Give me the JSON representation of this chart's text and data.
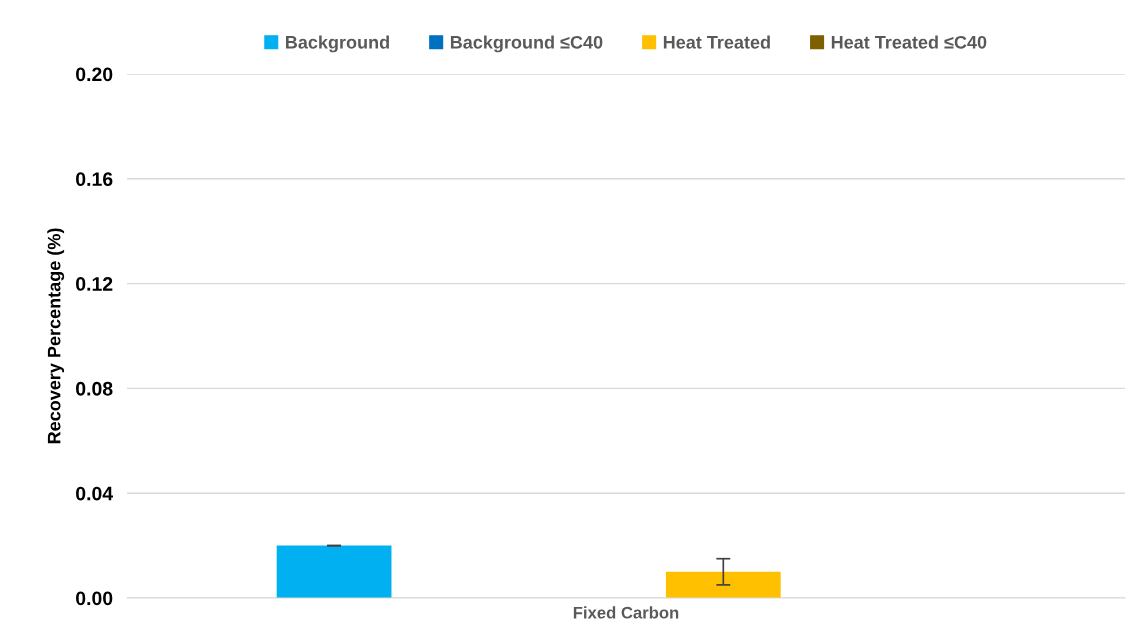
{
  "chart_data": {
    "type": "bar",
    "ylabel": "Recovery Percentage (%)",
    "categories": [
      "Fixed Carbon"
    ],
    "series": [
      {
        "name": "Background",
        "color": "#00b0f0",
        "values": [
          0.02
        ],
        "errors": [
          0
        ]
      },
      {
        "name": "Background ≤C40",
        "color": "#0070c0",
        "values": [
          null
        ]
      },
      {
        "name": "Heat Treated",
        "color": "#ffc000",
        "values": [
          0.01
        ],
        "errors": [
          0.005
        ]
      },
      {
        "name": "Heat Treated ≤C40",
        "color": "#7f6000",
        "values": [
          null
        ]
      }
    ],
    "ylim": [
      0,
      0.2
    ],
    "yticks": [
      {
        "value": 0,
        "label": "0.00"
      },
      {
        "value": 0.04,
        "label": "0.04"
      },
      {
        "value": 0.08,
        "label": "0.08"
      },
      {
        "value": 0.12,
        "label": "0.12"
      },
      {
        "value": 0.16,
        "label": "0.16"
      },
      {
        "value": 0.2,
        "label": "0.20"
      }
    ],
    "grid": "y",
    "legend": "top"
  }
}
